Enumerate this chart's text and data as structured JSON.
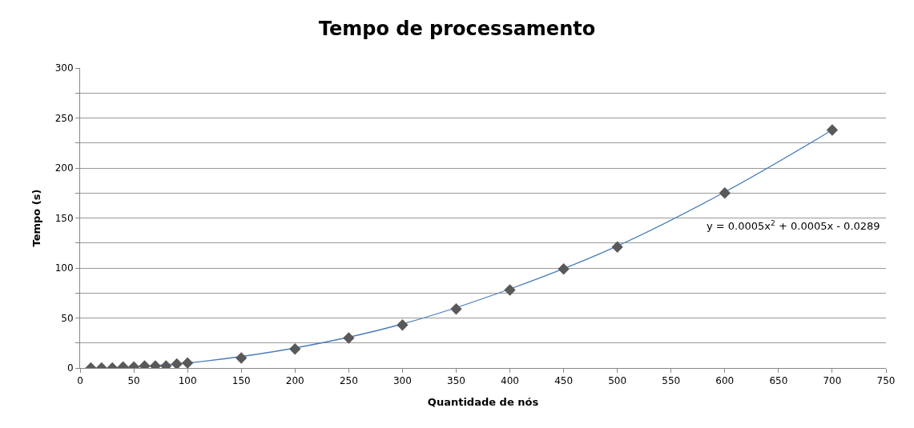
{
  "chart_data": {
    "type": "scatter",
    "title": "Tempo de processamento",
    "xlabel": "Quantidade de nós",
    "ylabel": "Tempo (s)",
    "xlim": [
      0,
      750
    ],
    "xticks": [
      0,
      50,
      100,
      150,
      200,
      250,
      300,
      350,
      400,
      450,
      500,
      550,
      600,
      650,
      700,
      750
    ],
    "ylim": [
      0,
      300
    ],
    "yticks": [
      0,
      {
        "value": 25,
        "label": null
      },
      50,
      {
        "value": 75,
        "label": null
      },
      100,
      {
        "value": 125,
        "label": null
      },
      150,
      {
        "value": 175,
        "label": null
      },
      200,
      {
        "value": 225,
        "label": null
      },
      250,
      {
        "value": 275,
        "label": null
      },
      300
    ],
    "grid": "y",
    "series": [
      {
        "color": "#595959",
        "marker": "diamond",
        "x": [
          10,
          20,
          30,
          40,
          50,
          60,
          70,
          80,
          90,
          100,
          150,
          200,
          250,
          300,
          350,
          400,
          450,
          500,
          600,
          700
        ],
        "values": [
          0,
          0,
          0,
          1,
          1,
          2,
          2,
          2,
          4,
          5,
          10,
          19,
          30,
          43,
          59,
          78,
          99,
          121,
          175,
          238
        ]
      },
      {
        "type": "line",
        "color": "#4a7ebb",
        "marker": "none",
        "x": [
          30,
          100,
          200,
          300,
          400,
          500,
          600,
          700
        ],
        "values": [
          0,
          5,
          20,
          44,
          79,
          122,
          176,
          238
        ]
      }
    ],
    "annotations": [
      "y = 0.0005x$^{2}$ + 0.0005x - 0.0289"
    ]
  }
}
